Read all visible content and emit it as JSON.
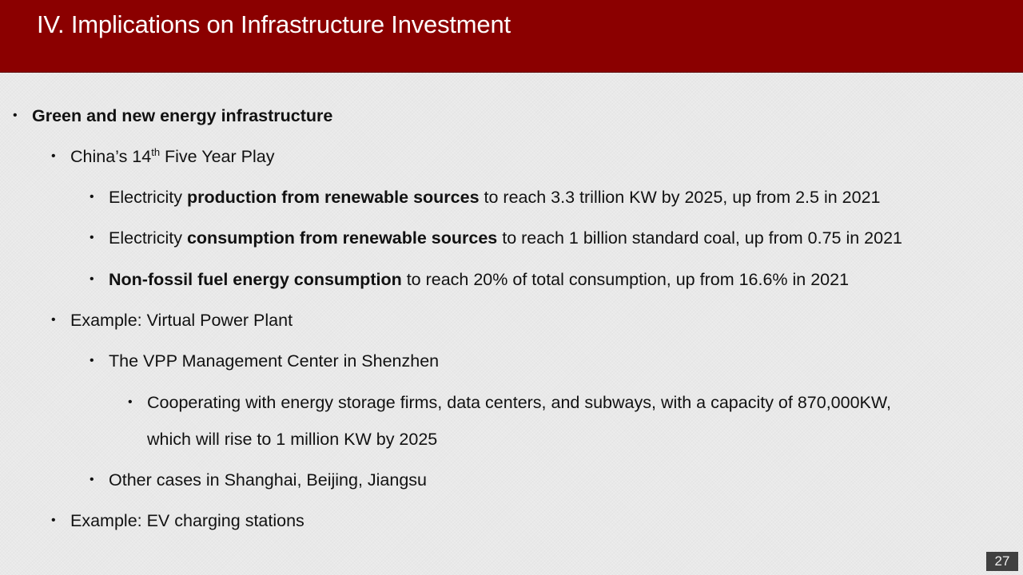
{
  "slide": {
    "title": "IV. Implications on Infrastructure Investment",
    "page_number": "27"
  },
  "bullets": {
    "l1_green": "Green and new energy infrastructure",
    "l2_plan_pre": "China’s 14",
    "l2_plan_sup": "th",
    "l2_plan_post": " Five Year Play",
    "l3_prod_pre": "Electricity ",
    "l3_prod_bold": "production from renewable sources",
    "l3_prod_post": " to reach 3.3 trillion KW by 2025, up from 2.5 in 2021",
    "l3_cons_pre": "Electricity ",
    "l3_cons_bold": "consumption from renewable sources",
    "l3_cons_post": " to reach 1 billion standard coal, up from 0.75 in 2021",
    "l3_nonfossil_bold": "Non-fossil fuel energy consumption",
    "l3_nonfossil_post": " to reach 20% of total consumption, up from 16.6% in 2021",
    "l2_vpp": "Example: Virtual Power Plant",
    "l3_vpp_center": "The VPP Management Center in Shenzhen",
    "l4_coop_line1": "Cooperating with energy storage firms, data centers, and subways, with a capacity of 870,000KW,",
    "l4_coop_line2": "which will rise to 1 million KW by 2025",
    "l3_other": "Other cases in Shanghai, Beijing, Jiangsu",
    "l2_ev": "Example: EV charging stations"
  },
  "bullet_symbol": "•",
  "colors": {
    "title_bar": "#8b0000",
    "title_text": "#ffffff",
    "background": "#e9e9e9",
    "page_number_bg": "#404040"
  }
}
